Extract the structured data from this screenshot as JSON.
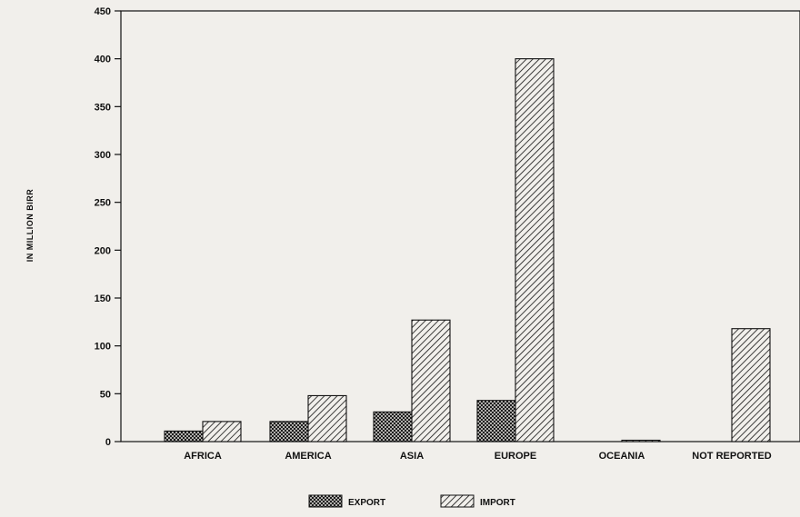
{
  "chart_data": {
    "type": "bar",
    "title": "",
    "xlabel": "",
    "ylabel": "IN MILLION BIRR",
    "ylim": [
      0,
      450
    ],
    "yticks": [
      0,
      50,
      100,
      150,
      200,
      250,
      300,
      350,
      400,
      450
    ],
    "categories": [
      "AFRICA",
      "AMERICA",
      "ASIA",
      "EUROPE",
      "OCEANIA",
      "NOT REPORTED"
    ],
    "series": [
      {
        "name": "EXPORT",
        "values": [
          11,
          21,
          31,
          43,
          0,
          0
        ],
        "pattern": "crosshatch"
      },
      {
        "name": "IMPORT",
        "values": [
          21,
          48,
          127,
          400,
          1,
          118
        ],
        "pattern": "diagonal"
      }
    ],
    "legend": "bottom-center",
    "grid": false,
    "colors": {
      "ink": "#111111",
      "paper": "#f1efeb"
    }
  }
}
